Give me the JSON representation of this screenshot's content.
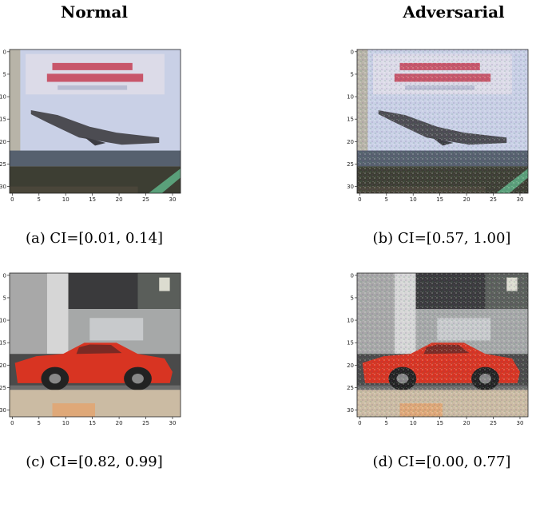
{
  "columns": [
    {
      "title": "Normal"
    },
    {
      "title": "Adversarial"
    }
  ],
  "ticks": [
    0,
    5,
    10,
    15,
    20,
    25,
    30
  ],
  "panels": [
    {
      "caption": "(a) CI=[0.01, 0.14]"
    },
    {
      "caption": "(b) CI=[0.57, 1.00]"
    },
    {
      "caption": "(c) CI=[0.82, 0.99]"
    },
    {
      "caption": "(d) CI=[0.00, 0.77]"
    }
  ]
}
